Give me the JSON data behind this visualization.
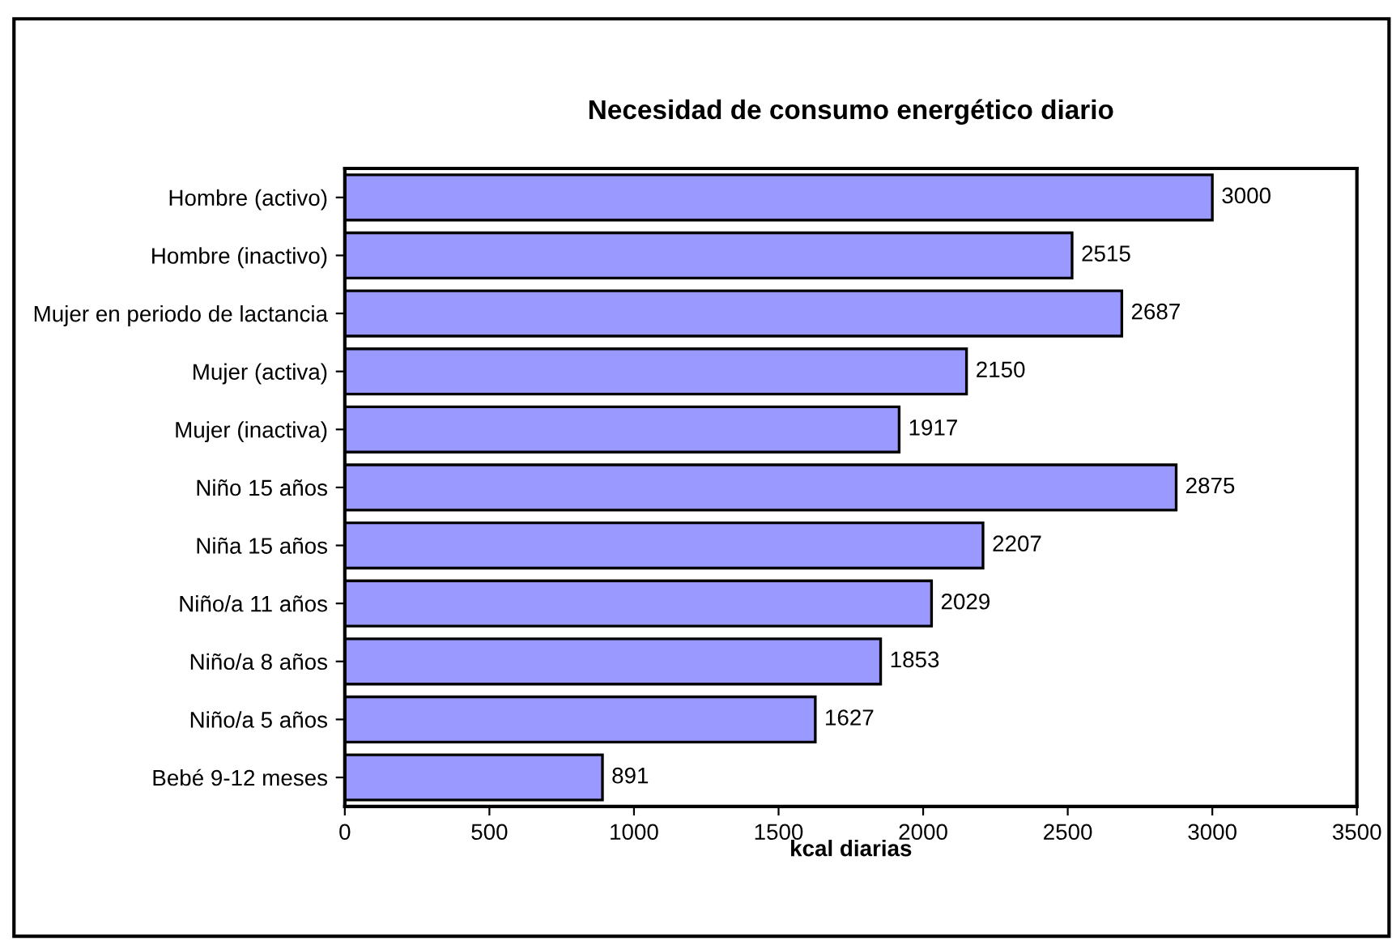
{
  "chart_data": {
    "type": "bar",
    "orientation": "horizontal",
    "title": "Necesidad de consumo energético diario",
    "xlabel": "kcal diarias",
    "categories": [
      "Hombre (activo)",
      "Hombre (inactivo)",
      "Mujer en periodo de lactancia",
      "Mujer (activa)",
      "Mujer (inactiva)",
      "Niño 15 años",
      "Niña 15 años",
      "Niño/a 11 años",
      "Niño/a 8 años",
      "Niño/a 5 años",
      "Bebé 9-12 meses"
    ],
    "values": [
      3000,
      2515,
      2687,
      2150,
      1917,
      2875,
      2207,
      2029,
      1853,
      1627,
      891
    ],
    "color": "#9999ff",
    "data_labels": true,
    "xlim": [
      0,
      3500
    ],
    "xticks": [
      0,
      500,
      1000,
      1500,
      2000,
      2500,
      3000,
      3500
    ],
    "grid": false,
    "legend": false
  }
}
